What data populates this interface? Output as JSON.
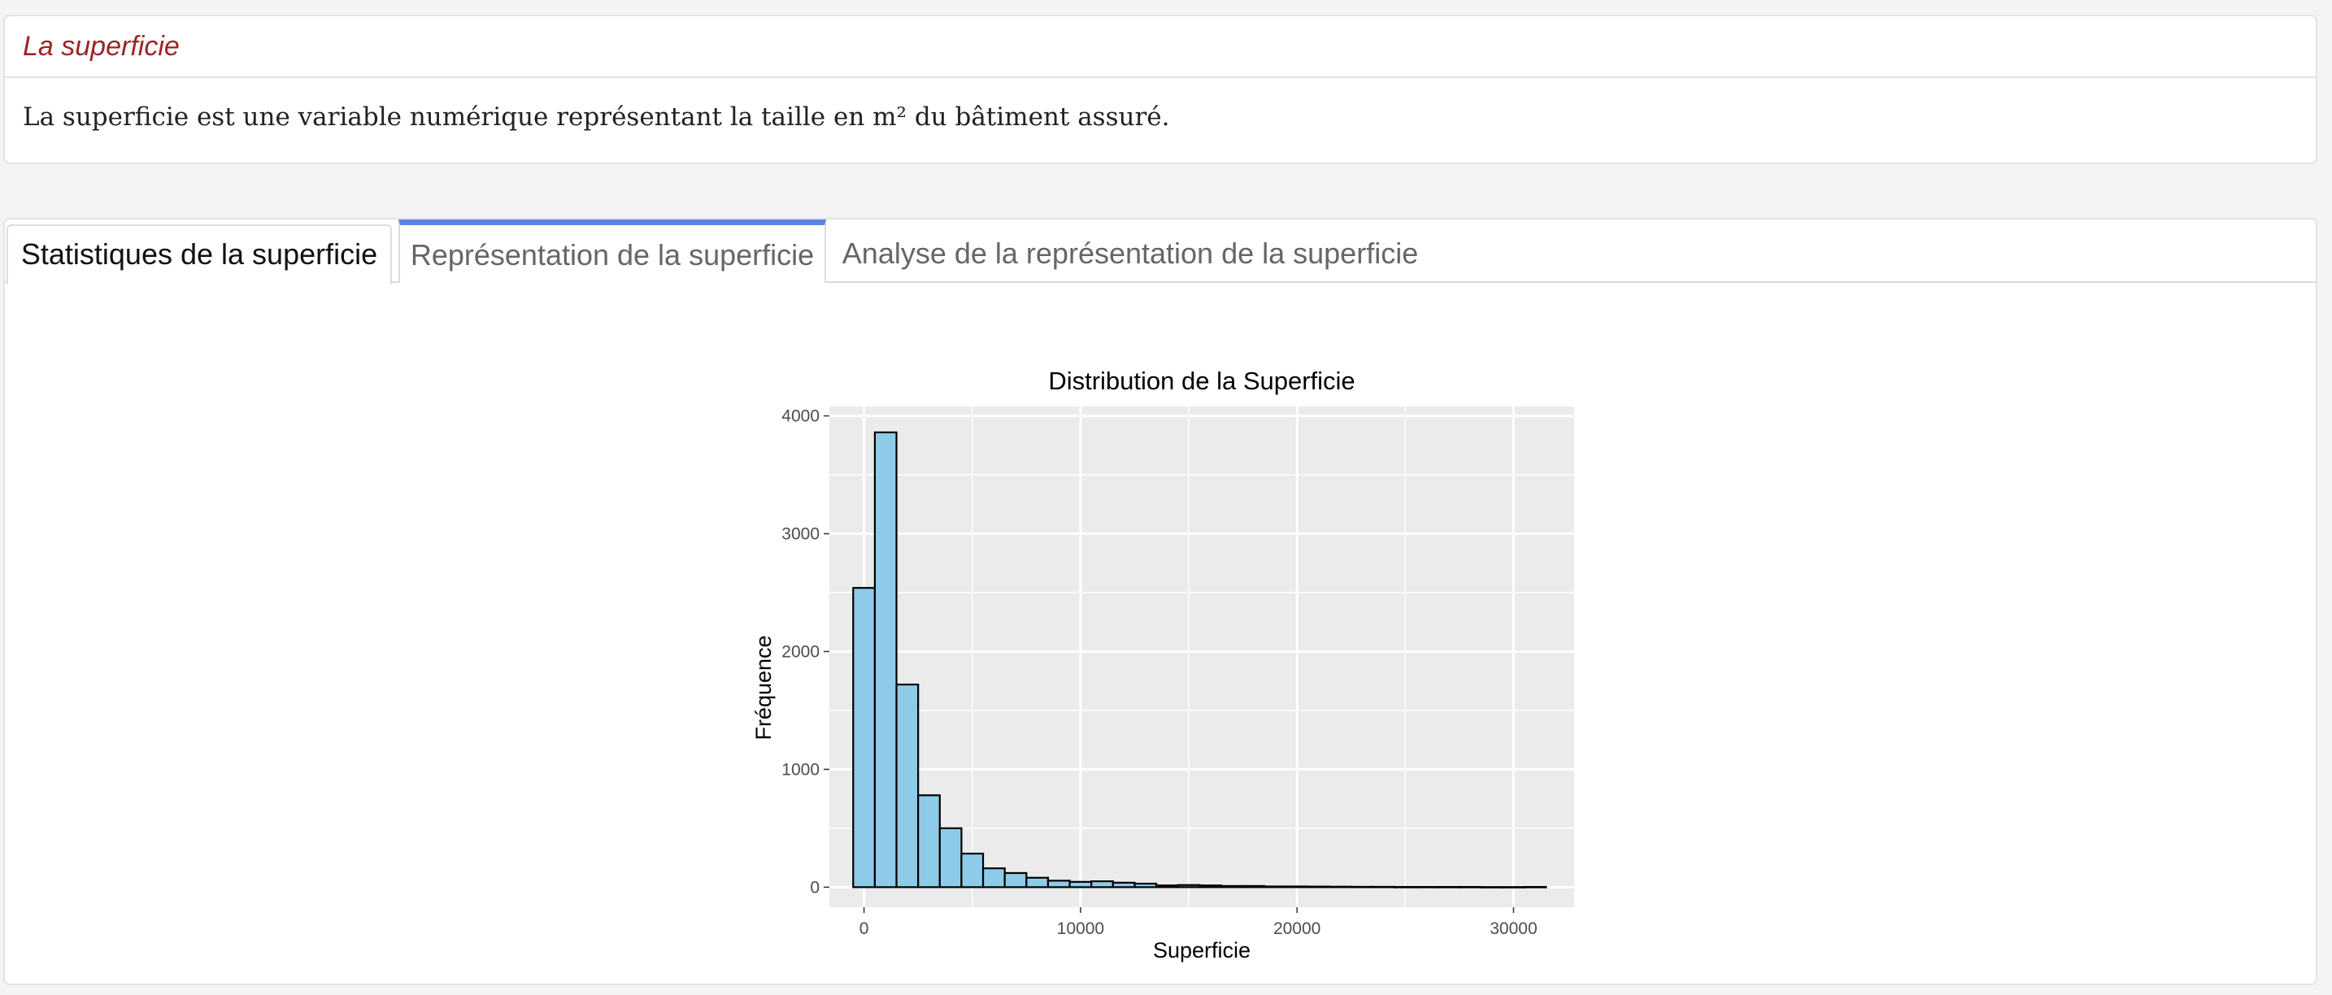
{
  "variable_box": {
    "title": "La superficie",
    "description": "La superficie est une variable numérique représentant la taille en m² du bâtiment assuré."
  },
  "tabs": [
    {
      "label": "Statistiques de la superficie",
      "state": "active"
    },
    {
      "label": "Représentation de la superficie",
      "state": "highlighted"
    },
    {
      "label": "Analyse de la représentation de la superficie",
      "state": "inactive"
    }
  ],
  "colors": {
    "title_red": "#9a2525",
    "tab_highlight": "#5b86e5",
    "bar_fill": "#8ecbe8",
    "panel_bg": "#ebebeb"
  },
  "chart_data": {
    "type": "bar",
    "title": "Distribution de la Superficie",
    "xlabel": "Superficie",
    "ylabel": "Fréquence",
    "xlim": [
      -1600,
      32800
    ],
    "ylim": [
      -170,
      4080
    ],
    "x_ticks": [
      0,
      10000,
      20000,
      30000
    ],
    "y_ticks": [
      0,
      1000,
      2000,
      3000,
      4000
    ],
    "bin_width": 1000,
    "bin_centers": [
      0,
      1000,
      2000,
      3000,
      4000,
      5000,
      6000,
      7000,
      8000,
      9000,
      10000,
      11000,
      12000,
      13000,
      14000,
      15000,
      16000,
      17000,
      18000,
      19000,
      20000,
      21000,
      22000,
      23000,
      24000,
      25000,
      26000,
      27000,
      28000,
      29000,
      30000,
      31000
    ],
    "values": [
      2540,
      3860,
      1720,
      780,
      500,
      285,
      160,
      120,
      80,
      55,
      45,
      50,
      38,
      30,
      15,
      18,
      15,
      10,
      10,
      6,
      6,
      5,
      4,
      3,
      3,
      2,
      2,
      2,
      2,
      1,
      1,
      2
    ],
    "grid": true,
    "legend": "none"
  }
}
